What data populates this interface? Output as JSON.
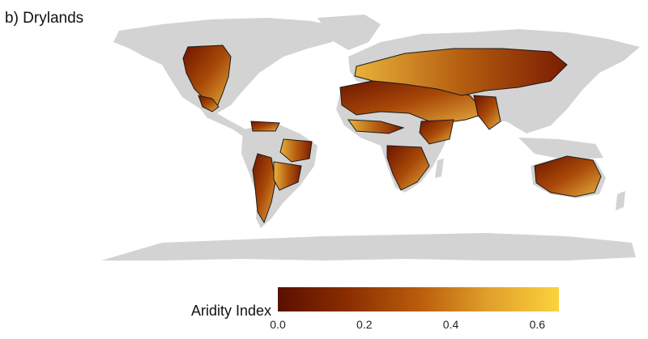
{
  "panel_label": "b) Drylands",
  "legend": {
    "title": "Aridity Index",
    "ticks": [
      "0.0",
      "0.2",
      "0.4",
      "0.6"
    ],
    "tick_values": [
      0.0,
      0.2,
      0.4,
      0.6
    ],
    "range": [
      0.0,
      0.65
    ],
    "colors": [
      "#5a0f00",
      "#8a2e00",
      "#b85c0c",
      "#e0a02a",
      "#fcd23e"
    ]
  },
  "map": {
    "land_color": "#d3d3d3",
    "dryland_colors": [
      "#6b1400",
      "#9a3a05",
      "#c8731a",
      "#eab340"
    ],
    "outline_color": "#1a1a1a"
  }
}
